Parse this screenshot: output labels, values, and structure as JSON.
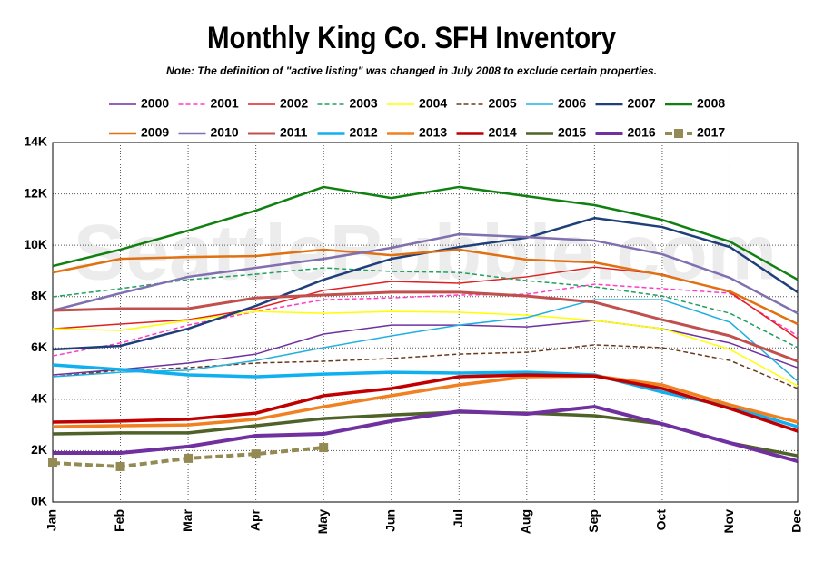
{
  "chart_data": {
    "type": "line",
    "title": "Monthly King Co. SFH Inventory",
    "subtitle": "Note: The definition of \"active listing\" was changed in July 2008 to exclude certain properties.",
    "watermark": "SeattleBubble.com",
    "categories": [
      "Jan",
      "Feb",
      "Mar",
      "Apr",
      "May",
      "Jun",
      "Jul",
      "Aug",
      "Sep",
      "Oct",
      "Nov",
      "Dec"
    ],
    "ylim": [
      0,
      14000
    ],
    "yticks": [
      {
        "value": 0,
        "label": "0K"
      },
      {
        "value": 2000,
        "label": "2K"
      },
      {
        "value": 4000,
        "label": "4K"
      },
      {
        "value": 6000,
        "label": "6K"
      },
      {
        "value": 8000,
        "label": "8K"
      },
      {
        "value": 10000,
        "label": "10K"
      },
      {
        "value": 12000,
        "label": "12K"
      },
      {
        "value": 14000,
        "label": "14K"
      }
    ],
    "grid": true,
    "legend": "top",
    "series": [
      {
        "name": "2000",
        "color": "#7030a0",
        "width": 1.5,
        "style": "solid",
        "values": [
          4950,
          5160,
          5410,
          5760,
          6540,
          6890,
          6890,
          6820,
          7070,
          6750,
          6190,
          5230
        ]
      },
      {
        "name": "2001",
        "color": "#ff3cc8",
        "width": 1.5,
        "style": "dashed",
        "values": [
          5690,
          6190,
          6890,
          7420,
          7880,
          7950,
          8060,
          8090,
          8480,
          8310,
          8130,
          6470
        ]
      },
      {
        "name": "2002",
        "color": "#e02020",
        "width": 1.5,
        "style": "solid",
        "values": [
          6750,
          6930,
          7100,
          7530,
          8240,
          8590,
          8520,
          8770,
          9150,
          8870,
          8170,
          6360
        ]
      },
      {
        "name": "2003",
        "color": "#20a060",
        "width": 1.5,
        "style": "dashed",
        "values": [
          7990,
          8310,
          8660,
          8870,
          9120,
          8980,
          8940,
          8620,
          8380,
          8020,
          7350,
          6010
        ]
      },
      {
        "name": "2004",
        "color": "#ffff00",
        "width": 1.5,
        "style": "solid",
        "values": [
          6750,
          6680,
          7070,
          7420,
          7350,
          7420,
          7390,
          7280,
          7070,
          6750,
          5940,
          4520
        ]
      },
      {
        "name": "2005",
        "color": "#6b3a1e",
        "width": 1.5,
        "style": "dashed",
        "values": [
          4880,
          5130,
          5230,
          5410,
          5480,
          5590,
          5760,
          5830,
          6120,
          6010,
          5510,
          4420
        ]
      },
      {
        "name": "2006",
        "color": "#20b0e0",
        "width": 1.5,
        "style": "solid",
        "values": [
          4880,
          5050,
          5130,
          5510,
          6010,
          6470,
          6890,
          7180,
          7880,
          7880,
          7000,
          4700
        ]
      },
      {
        "name": "2007",
        "color": "#1f3f7a",
        "width": 2.5,
        "style": "solid",
        "values": [
          5940,
          6080,
          6750,
          7640,
          8660,
          9470,
          9930,
          10290,
          11060,
          10710,
          9930,
          8170
        ]
      },
      {
        "name": "2008",
        "color": "#108010",
        "width": 2.5,
        "style": "solid",
        "values": [
          9190,
          9830,
          10570,
          11350,
          12270,
          11840,
          12270,
          11910,
          11560,
          10990,
          10140,
          8660
        ]
      },
      {
        "name": "2009",
        "color": "#e07010",
        "width": 2.5,
        "style": "solid",
        "values": [
          8940,
          9470,
          9540,
          9580,
          9830,
          9610,
          9830,
          9440,
          9330,
          8840,
          8200,
          6930
        ]
      },
      {
        "name": "2010",
        "color": "#8070b0",
        "width": 2.5,
        "style": "solid",
        "values": [
          7460,
          8130,
          8770,
          9120,
          9470,
          9900,
          10430,
          10320,
          10180,
          9650,
          8730,
          7350
        ]
      },
      {
        "name": "2011",
        "color": "#c0504d",
        "width": 3,
        "style": "solid",
        "values": [
          7460,
          7530,
          7530,
          7950,
          8060,
          8170,
          8170,
          8020,
          7780,
          7100,
          6470,
          5480
        ]
      },
      {
        "name": "2012",
        "color": "#10b0f0",
        "width": 3.5,
        "style": "solid",
        "values": [
          5340,
          5160,
          4950,
          4880,
          4980,
          5050,
          5020,
          5050,
          4950,
          4280,
          3710,
          2930
        ]
      },
      {
        "name": "2013",
        "color": "#f08020",
        "width": 3.5,
        "style": "solid",
        "values": [
          2930,
          2970,
          3000,
          3220,
          3710,
          4140,
          4560,
          4880,
          4910,
          4560,
          3780,
          3110
        ]
      },
      {
        "name": "2014",
        "color": "#c00000",
        "width": 3.5,
        "style": "solid",
        "values": [
          3110,
          3150,
          3220,
          3460,
          4140,
          4420,
          4880,
          4950,
          4910,
          4420,
          3640,
          2760
        ]
      },
      {
        "name": "2015",
        "color": "#4f6228",
        "width": 3.5,
        "style": "solid",
        "values": [
          2650,
          2690,
          2690,
          2970,
          3250,
          3390,
          3500,
          3460,
          3360,
          3040,
          2300,
          1800
        ]
      },
      {
        "name": "2016",
        "color": "#7030a0",
        "width": 4,
        "style": "solid",
        "values": [
          1910,
          1910,
          2160,
          2580,
          2650,
          3150,
          3530,
          3430,
          3710,
          3040,
          2300,
          1590
        ]
      },
      {
        "name": "2017",
        "color": "#948a54",
        "width": 4,
        "style": "dashed",
        "marker": "square",
        "values": [
          1520,
          1380,
          1700,
          1870,
          2120,
          null,
          null,
          null,
          null,
          null,
          null,
          null
        ]
      }
    ]
  }
}
